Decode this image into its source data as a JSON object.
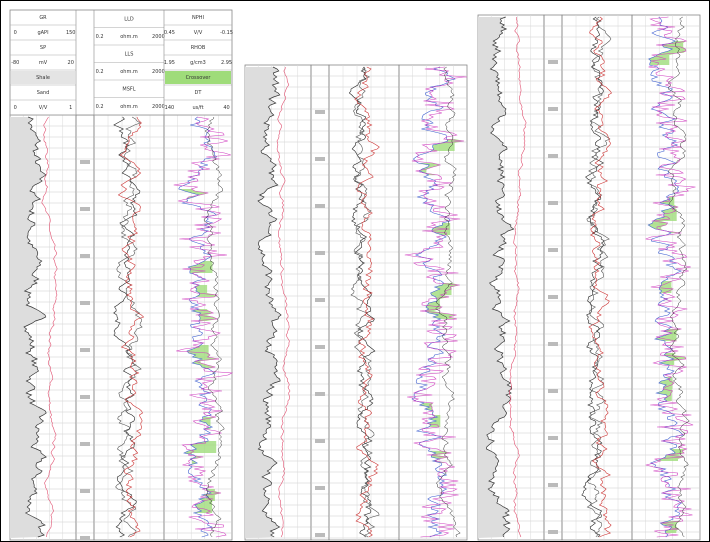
{
  "header": {
    "tracks": [
      {
        "rows": [
          [
            "GR"
          ],
          [
            "0",
            "gAPI",
            "150"
          ],
          [
            "SP"
          ],
          [
            "-80",
            "mV",
            "20"
          ],
          [
            "Shale"
          ],
          [
            "Sand"
          ],
          [
            "0",
            "V/V",
            "1"
          ]
        ]
      },
      {
        "rows": [
          [
            "LLD"
          ],
          [
            "0.2",
            "ohm.m",
            "2000"
          ],
          [
            "LLS"
          ],
          [
            "0.2",
            "ohm.m",
            "2000"
          ],
          [
            "MSFL"
          ],
          [
            "0.2",
            "ohm.m",
            "2000"
          ]
        ]
      },
      {
        "rows": [
          [
            "NPHI"
          ],
          [
            "0.45",
            "V/V",
            "-0.15"
          ],
          [
            "RHOB"
          ],
          [
            "1.95",
            "g/cm3",
            "2.95"
          ],
          [
            "Crossover"
          ],
          [
            "DT"
          ],
          [
            "140",
            "us/ft",
            "40"
          ]
        ]
      }
    ]
  }
}
